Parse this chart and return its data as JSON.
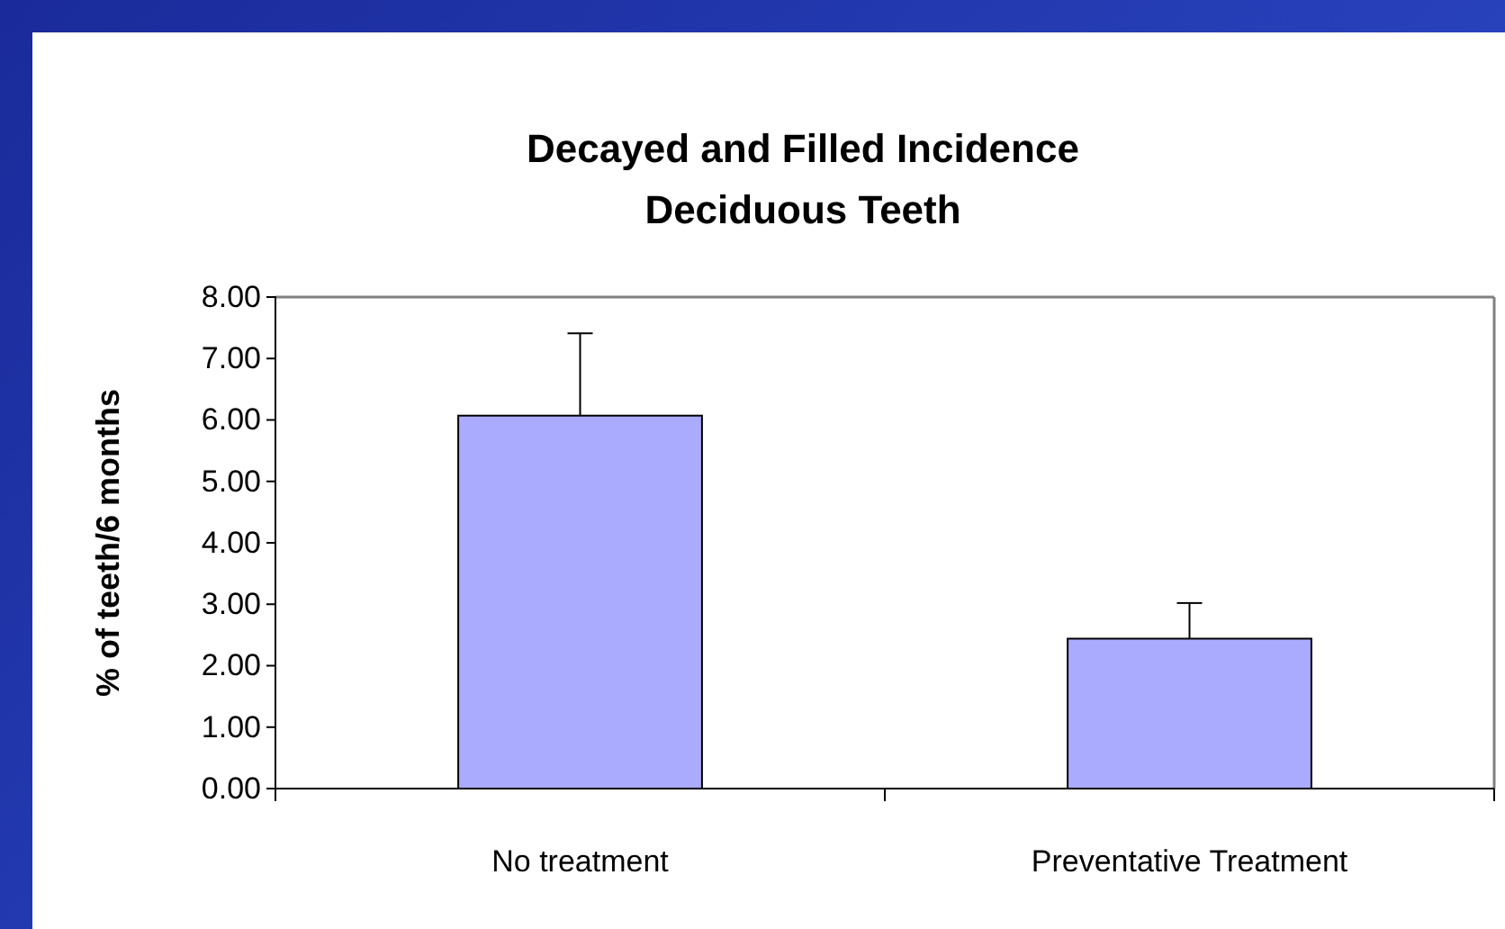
{
  "chart_data": {
    "type": "bar",
    "title": "Decayed and Filled Incidence\nDeciduous Teeth",
    "ylabel": "% of teeth/6 months",
    "categories": [
      "No treatment",
      "Preventative Treatment"
    ],
    "values": [
      6.07,
      2.44
    ],
    "errors": [
      [
        6.07,
        7.41
      ],
      [
        2.44,
        3.02
      ]
    ],
    "color": "#aaaaff",
    "ylim": [
      0,
      8
    ],
    "yticks": [
      {
        "value": 0,
        "label": "0.00"
      },
      {
        "value": 1,
        "label": "1.00"
      },
      {
        "value": 2,
        "label": "2.00"
      },
      {
        "value": 3,
        "label": "3.00"
      },
      {
        "value": 4,
        "label": "4.00"
      },
      {
        "value": 5,
        "label": "5.00"
      },
      {
        "value": 6,
        "label": "6.00"
      },
      {
        "value": 7,
        "label": "7.00"
      },
      {
        "value": 8,
        "label": "8.00"
      }
    ],
    "grid": false
  }
}
